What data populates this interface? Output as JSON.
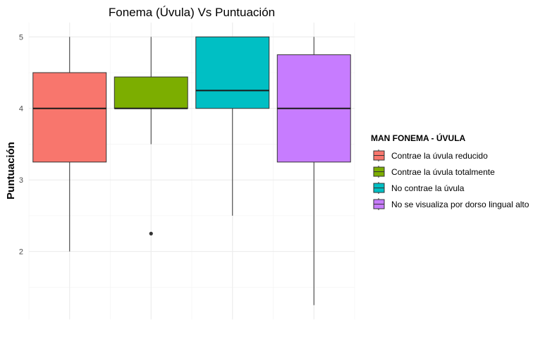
{
  "chart_data": {
    "type": "box",
    "title": "Fonema (Úvula) Vs Puntuación",
    "xlabel": "",
    "ylabel": "Puntuación",
    "ylim": [
      1.05,
      5.2
    ],
    "yticks": [
      2,
      3,
      4,
      5
    ],
    "grid": true,
    "legend": {
      "title": "MAN FONEMA - ÚVULA",
      "position": "right"
    },
    "series": [
      {
        "name": "Contrae la úvula reducido",
        "color": "#F8766D",
        "min": 2,
        "q1": 3.25,
        "median": 4,
        "q3": 4.5,
        "max": 5,
        "outliers": []
      },
      {
        "name": "Contrae la úvula totalmente",
        "color": "#7CAE00",
        "min": 3.5,
        "q1": 4,
        "median": 4,
        "q3": 4.44,
        "max": 5,
        "outliers": [
          2.25
        ]
      },
      {
        "name": "No contrae la úvula",
        "color": "#00BFC4",
        "min": 2.5,
        "q1": 4,
        "median": 4.25,
        "q3": 5,
        "max": 5,
        "outliers": []
      },
      {
        "name": "No se visualiza por dorso lingual alto",
        "color": "#C77CFF",
        "min": 1.25,
        "q1": 3.25,
        "median": 4,
        "q3": 4.75,
        "max": 5,
        "outliers": []
      }
    ]
  }
}
